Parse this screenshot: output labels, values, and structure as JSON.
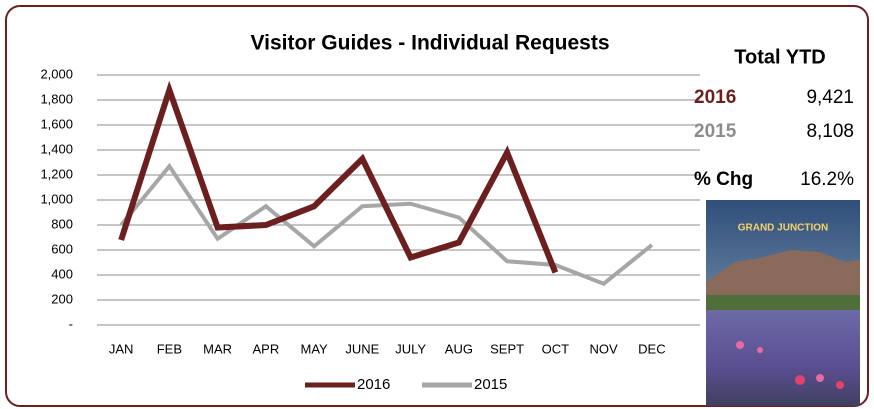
{
  "chart_data": {
    "type": "line",
    "title": "Visitor Guides - Individual Requests",
    "categories": [
      "JAN",
      "FEB",
      "MAR",
      "APR",
      "MAY",
      "JUNE",
      "JULY",
      "AUG",
      "SEPT",
      "OCT",
      "NOV",
      "DEC"
    ],
    "series": [
      {
        "name": "2016",
        "color": "#6b1f1f",
        "values": [
          680,
          1880,
          780,
          800,
          950,
          1330,
          540,
          660,
          1380,
          420,
          null,
          null
        ]
      },
      {
        "name": "2015",
        "color": "#a6a6a6",
        "values": [
          800,
          1270,
          690,
          950,
          630,
          950,
          970,
          860,
          510,
          480,
          330,
          640
        ]
      }
    ],
    "ylim": [
      0,
      2000
    ],
    "yticks": [
      {
        "value": 0,
        "label": "-"
      },
      200,
      400,
      600,
      800,
      {
        "value": 1000,
        "label": "1,000"
      },
      {
        "value": 1200,
        "label": "1,200"
      },
      {
        "value": 1400,
        "label": "1,400"
      },
      {
        "value": 1600,
        "label": "1,600"
      },
      {
        "value": 1800,
        "label": "1,800"
      },
      {
        "value": 2000,
        "label": "2,000"
      }
    ],
    "grid": true,
    "legend": "bottom"
  },
  "summary": {
    "title": "Total YTD",
    "rows": [
      {
        "label": "2016",
        "value": "9,421"
      },
      {
        "label": "2015",
        "value": "8,108"
      },
      {
        "label": "% Chg",
        "value": "16.2%"
      }
    ]
  },
  "cover": {
    "title": "GRAND JUNCTION"
  }
}
